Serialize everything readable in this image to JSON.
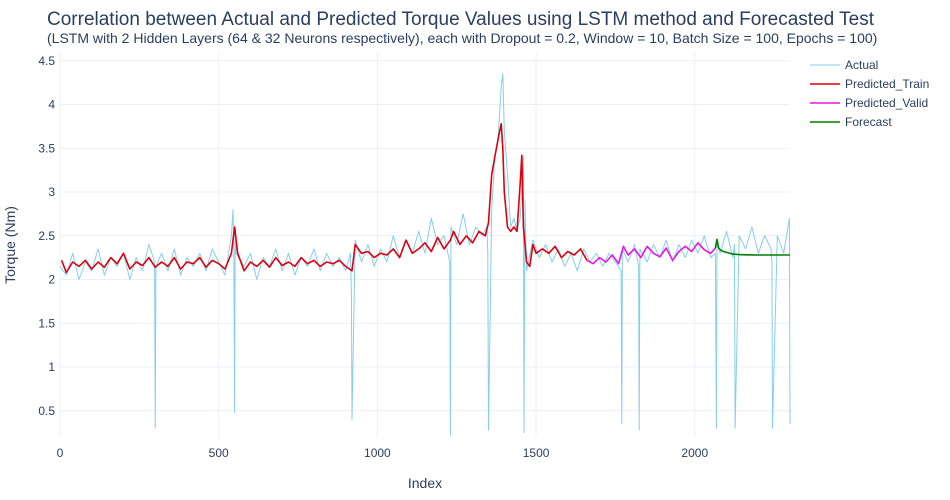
{
  "chart_data": {
    "type": "line",
    "title": "Correlation between Actual and Predicted Torque Values using LSTM method and Forecasted Test",
    "subtitle": "(LSTM with 2 Hidden Layers (64 & 32 Neurons respectively), each with Dropout = 0.2, Window = 10, Batch Size = 100, Epochs = 100)",
    "xlabel": "Index",
    "ylabel": "Torque (Nm)",
    "xlim": [
      0,
      2300
    ],
    "ylim": [
      0.2,
      4.6
    ],
    "x_ticks": [
      0,
      500,
      1000,
      1500,
      2000
    ],
    "y_ticks": [
      0.5,
      1,
      1.5,
      2,
      2.5,
      3,
      3.5,
      4,
      4.5
    ],
    "x_tick_labels": [
      "0",
      "500",
      "1000",
      "1500",
      "2000"
    ],
    "y_tick_labels": [
      "0.5",
      "1",
      "1.5",
      "2",
      "2.5",
      "3",
      "3.5",
      "4",
      "4.5"
    ],
    "grid": true,
    "legend_position": "top-right",
    "series": [
      {
        "name": "Actual",
        "color": "#87ceeb",
        "x": [
          0,
          20,
          40,
          60,
          80,
          100,
          120,
          140,
          160,
          180,
          200,
          220,
          240,
          260,
          280,
          298,
          300,
          302,
          320,
          340,
          360,
          380,
          400,
          420,
          440,
          460,
          480,
          500,
          520,
          540,
          545,
          548,
          550,
          552,
          555,
          580,
          600,
          620,
          640,
          660,
          680,
          700,
          720,
          740,
          760,
          780,
          800,
          820,
          840,
          860,
          880,
          900,
          915,
          918,
          920,
          930,
          950,
          970,
          990,
          1010,
          1030,
          1050,
          1070,
          1090,
          1110,
          1130,
          1150,
          1170,
          1190,
          1210,
          1228,
          1230,
          1232,
          1250,
          1270,
          1290,
          1310,
          1330,
          1345,
          1348,
          1350,
          1360,
          1370,
          1380,
          1390,
          1395,
          1400,
          1410,
          1420,
          1430,
          1440,
          1450,
          1460,
          1462,
          1465,
          1470,
          1490,
          1510,
          1530,
          1550,
          1570,
          1590,
          1610,
          1630,
          1650,
          1670,
          1690,
          1710,
          1730,
          1750,
          1768,
          1770,
          1772,
          1790,
          1810,
          1823,
          1825,
          1827,
          1850,
          1870,
          1890,
          1910,
          1930,
          1950,
          1970,
          1990,
          2010,
          2030,
          2050,
          2065,
          2068,
          2070,
          2080,
          2100,
          2120,
          2125,
          2127,
          2140,
          2160,
          2180,
          2200,
          2220,
          2240,
          2243,
          2245,
          2260,
          2280,
          2298,
          2300
        ],
        "values": [
          2.15,
          2.05,
          2.3,
          2.0,
          2.2,
          2.1,
          2.35,
          2.05,
          2.25,
          2.15,
          2.3,
          2.0,
          2.25,
          2.1,
          2.4,
          2.2,
          0.3,
          2.15,
          2.3,
          2.1,
          2.35,
          2.05,
          2.25,
          2.15,
          2.3,
          2.1,
          2.35,
          2.2,
          2.05,
          2.5,
          2.8,
          2.3,
          0.48,
          2.6,
          2.3,
          2.15,
          2.3,
          2.0,
          2.25,
          2.15,
          2.35,
          2.1,
          2.3,
          2.05,
          2.25,
          2.15,
          2.35,
          2.1,
          2.3,
          2.15,
          2.25,
          2.1,
          2.3,
          1.85,
          0.4,
          2.45,
          2.2,
          2.4,
          2.15,
          2.35,
          2.2,
          2.5,
          2.25,
          2.45,
          2.3,
          2.55,
          2.3,
          2.7,
          2.4,
          2.5,
          2.2,
          0.22,
          2.6,
          2.4,
          2.75,
          2.4,
          2.6,
          2.5,
          2.6,
          2.3,
          0.28,
          2.8,
          3.4,
          3.6,
          4.2,
          4.35,
          3.7,
          3.2,
          2.6,
          2.7,
          2.55,
          2.7,
          3.4,
          0.25,
          2.9,
          2.1,
          2.45,
          2.25,
          2.4,
          2.2,
          2.35,
          2.15,
          2.3,
          2.1,
          2.35,
          2.2,
          2.3,
          2.15,
          2.3,
          2.2,
          2.1,
          0.35,
          2.35,
          2.2,
          2.4,
          2.15,
          0.28,
          2.35,
          2.2,
          2.4,
          2.25,
          2.45,
          2.2,
          2.4,
          2.25,
          2.45,
          2.3,
          2.5,
          2.25,
          2.3,
          0.3,
          2.45,
          2.3,
          2.55,
          2.25,
          2.4,
          0.3,
          2.5,
          2.35,
          2.6,
          2.3,
          2.5,
          2.35,
          2.2,
          0.3,
          2.5,
          2.3,
          2.7,
          0.35
        ]
      },
      {
        "name": "Predicted_Train",
        "color": "#e0000d",
        "x": [
          5,
          20,
          40,
          60,
          80,
          100,
          120,
          140,
          160,
          180,
          200,
          220,
          240,
          260,
          280,
          300,
          320,
          340,
          360,
          380,
          400,
          420,
          440,
          460,
          480,
          500,
          520,
          540,
          550,
          560,
          580,
          600,
          620,
          640,
          660,
          680,
          700,
          720,
          740,
          760,
          780,
          800,
          820,
          840,
          860,
          880,
          900,
          920,
          930,
          950,
          970,
          990,
          1010,
          1030,
          1050,
          1070,
          1090,
          1110,
          1130,
          1150,
          1170,
          1190,
          1210,
          1230,
          1240,
          1260,
          1280,
          1300,
          1320,
          1340,
          1350,
          1360,
          1370,
          1380,
          1390,
          1395,
          1400,
          1410,
          1420,
          1430,
          1440,
          1450,
          1455,
          1460,
          1470,
          1480,
          1490,
          1500,
          1520,
          1540,
          1560,
          1580,
          1600,
          1620,
          1640,
          1660
        ],
        "values": [
          2.22,
          2.08,
          2.2,
          2.15,
          2.22,
          2.12,
          2.2,
          2.14,
          2.25,
          2.18,
          2.3,
          2.12,
          2.2,
          2.16,
          2.25,
          2.14,
          2.2,
          2.15,
          2.25,
          2.12,
          2.2,
          2.18,
          2.25,
          2.14,
          2.22,
          2.18,
          2.12,
          2.3,
          2.6,
          2.3,
          2.1,
          2.2,
          2.15,
          2.22,
          2.14,
          2.25,
          2.16,
          2.2,
          2.15,
          2.25,
          2.18,
          2.22,
          2.15,
          2.2,
          2.18,
          2.22,
          2.15,
          2.1,
          2.4,
          2.3,
          2.32,
          2.25,
          2.3,
          2.28,
          2.35,
          2.25,
          2.45,
          2.3,
          2.35,
          2.42,
          2.32,
          2.48,
          2.35,
          2.45,
          2.55,
          2.4,
          2.5,
          2.42,
          2.55,
          2.5,
          2.65,
          3.2,
          3.4,
          3.6,
          3.78,
          3.5,
          3.0,
          2.6,
          2.55,
          2.6,
          2.55,
          3.1,
          3.42,
          2.6,
          2.2,
          2.15,
          2.4,
          2.3,
          2.35,
          2.3,
          2.38,
          2.25,
          2.32,
          2.28,
          2.35,
          2.22
        ]
      },
      {
        "name": "Predicted_Valid",
        "color": "#e815e8",
        "x": [
          1660,
          1680,
          1700,
          1720,
          1740,
          1760,
          1775,
          1790,
          1810,
          1830,
          1850,
          1870,
          1890,
          1910,
          1930,
          1950,
          1970,
          1990,
          2010,
          2030,
          2050,
          2065
        ],
        "values": [
          2.22,
          2.18,
          2.25,
          2.2,
          2.28,
          2.18,
          2.38,
          2.28,
          2.35,
          2.25,
          2.38,
          2.3,
          2.26,
          2.36,
          2.22,
          2.32,
          2.38,
          2.32,
          2.42,
          2.34,
          2.3,
          2.36
        ]
      },
      {
        "name": "Forecast",
        "color": "#008000",
        "x": [
          2065,
          2070,
          2075,
          2080,
          2090,
          2100,
          2120,
          2140,
          2160,
          2180,
          2200,
          2240,
          2280,
          2300
        ],
        "values": [
          2.36,
          2.46,
          2.36,
          2.34,
          2.32,
          2.31,
          2.29,
          2.285,
          2.282,
          2.281,
          2.28,
          2.28,
          2.28,
          2.28
        ]
      }
    ]
  }
}
